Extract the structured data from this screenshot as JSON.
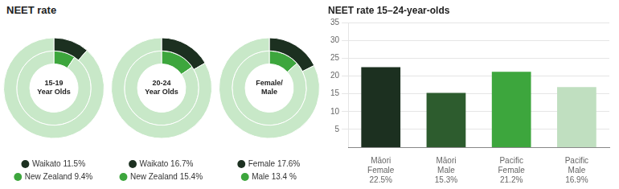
{
  "chart_data": [
    {
      "type": "doughnut",
      "title": "NEET rate",
      "annotations": [
        "15-19\nYear Olds"
      ],
      "legend": "bottom",
      "series": [
        {
          "name": "Waikato 11.5%",
          "values": [
            11.5,
            88.5
          ],
          "colors": [
            "#1c3020",
            "#c8e8c8"
          ]
        },
        {
          "name": "New Zealand 9.4%",
          "values": [
            9.4,
            90.6
          ],
          "colors": [
            "#3da63d",
            "#c8e8c8"
          ]
        }
      ]
    },
    {
      "type": "doughnut",
      "annotations": [
        "20-24\nYear Olds"
      ],
      "legend": "bottom",
      "series": [
        {
          "name": "Waikato 16.7%",
          "values": [
            16.7,
            83.3
          ],
          "colors": [
            "#1c3020",
            "#c8e8c8"
          ]
        },
        {
          "name": "New Zealand 15.4%",
          "values": [
            15.4,
            84.6
          ],
          "colors": [
            "#3da63d",
            "#c8e8c8"
          ]
        }
      ]
    },
    {
      "type": "doughnut",
      "annotations": [
        "Female/\nMale"
      ],
      "legend": "bottom",
      "series": [
        {
          "name": "Female 17.6%",
          "values": [
            17.6,
            82.4
          ],
          "colors": [
            "#1c3020",
            "#c8e8c8"
          ]
        },
        {
          "name": "Male 13.4 %",
          "values": [
            13.4,
            86.6
          ],
          "colors": [
            "#3da63d",
            "#c8e8c8"
          ]
        }
      ]
    },
    {
      "type": "bar",
      "title": "NEET rate 15–24-year-olds",
      "categories": [
        "Māori\nFemale\n22.5%",
        "Māori\nMale\n15.3%",
        "Pacific\nFemale\n21.2%",
        "Pacific\nMale\n16.9%"
      ],
      "values": [
        22.5,
        15.3,
        21.2,
        16.9
      ],
      "colors": [
        "#1c3020",
        "#2d5c2e",
        "#3da63d",
        "#c0dfc0"
      ],
      "ylim": [
        0,
        35
      ],
      "yticks": [
        5,
        10,
        15,
        20,
        25,
        30,
        35
      ],
      "grid": true
    }
  ]
}
